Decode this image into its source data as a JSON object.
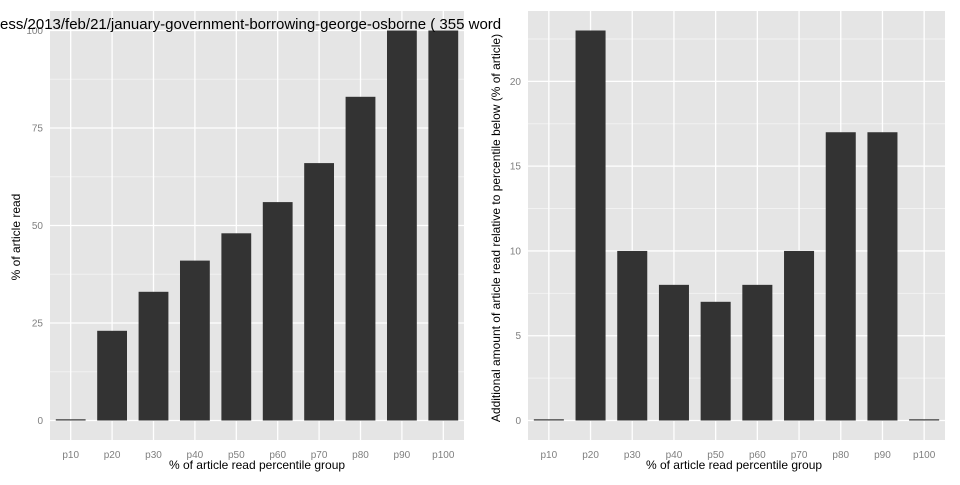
{
  "colors": {
    "panel_background": "#e5e5e5",
    "major_grid": "#ffffff",
    "minor_grid": "#f2f2f2",
    "bar_fill": "#333333",
    "tick_text": "#7f7f7f"
  },
  "chart_data": [
    {
      "type": "bar",
      "title": "ess/2013/feb/21/january-government-borrowing-george-osborne ( 355 word",
      "xlabel": "% of article read percentile group",
      "ylabel": "% of article read",
      "categories": [
        "p10",
        "p20",
        "p30",
        "p40",
        "p50",
        "p60",
        "p70",
        "p80",
        "p90",
        "p100"
      ],
      "values": [
        0,
        23,
        33,
        41,
        48,
        56,
        66,
        83,
        100,
        100
      ],
      "yticks": [
        0,
        25,
        50,
        75,
        100
      ],
      "ylim": [
        -5,
        105
      ],
      "grid": true
    },
    {
      "type": "bar",
      "title": "",
      "xlabel": "% of article read percentile group",
      "ylabel": "Additional amount of article read relative to percentile below (% of article)",
      "categories": [
        "p10",
        "p20",
        "p30",
        "p40",
        "p50",
        "p60",
        "p70",
        "p80",
        "p90",
        "p100"
      ],
      "values": [
        0,
        23,
        10,
        8,
        7,
        8,
        10,
        17,
        17,
        0
      ],
      "yticks": [
        0,
        5,
        10,
        15,
        20
      ],
      "ylim": [
        -1.15,
        24.15
      ],
      "grid": true
    }
  ]
}
